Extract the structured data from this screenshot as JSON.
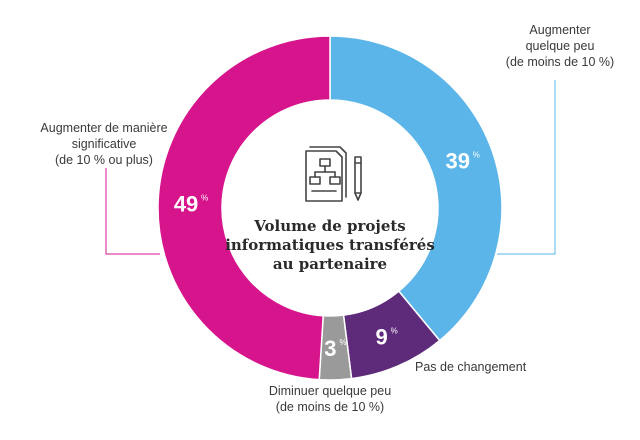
{
  "chart_data": {
    "type": "pie",
    "variant": "donut",
    "title": "Volume de projets informatiques transférés au partenaire",
    "unit": "%",
    "slices": [
      {
        "label": "Augmenter quelque peu (de moins de 10 %)",
        "value": 39,
        "color": "#5bb5e8",
        "label_lines": [
          "Augmenter",
          "quelque peu",
          "(de moins de 10 %)"
        ]
      },
      {
        "label": "Pas de changement",
        "value": 9,
        "color": "#5e2a7a",
        "label_lines": [
          "Pas de changement"
        ]
      },
      {
        "label": "Diminuer quelque peu (de moins de 10 %)",
        "value": 3,
        "color": "#9a9a9a",
        "label_lines": [
          "Diminuer quelque peu",
          "(de moins de 10 %)"
        ]
      },
      {
        "label": "Augmenter de manière significative (de 10 % ou plus)",
        "value": 49,
        "color": "#d6148c",
        "label_lines": [
          "Augmenter de manière",
          "significative",
          "(de 10 % ou plus)"
        ]
      }
    ],
    "center_title_lines": [
      "Volume de projets",
      "informatiques transférés",
      "au partenaire"
    ],
    "leader_color": "#d6148c",
    "leader_color_right": "#5bb5e8"
  },
  "icon": {
    "name": "document-flowchart-pencil-icon"
  }
}
